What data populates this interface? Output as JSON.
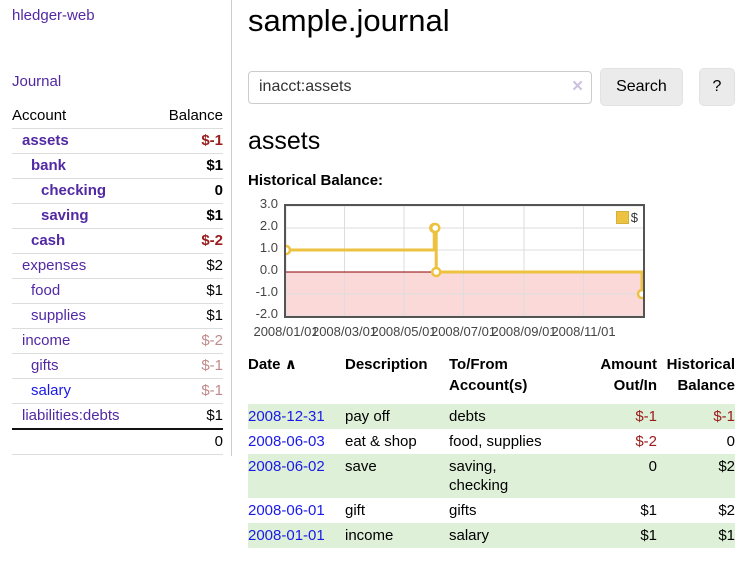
{
  "colors": {
    "link_purple": "#5229a3",
    "link_blue": "#1a1ae8",
    "neg_strong": "#9a1b1b",
    "neg_soft": "#c08a8a",
    "row_green": "#dff0d8",
    "chart_line": "#EDC240",
    "btn_bg": "#ebebeb"
  },
  "header": {
    "title": "sample.journal"
  },
  "search": {
    "value": "inacct:assets",
    "clear_icon": "×",
    "button_label": "Search",
    "help_label": "?"
  },
  "sidebar": {
    "brand": "hledger-web",
    "journal_label": "Journal",
    "columns": {
      "account": "Account",
      "balance": "Balance"
    },
    "accounts": [
      {
        "name": "assets",
        "balance": "$-1"
      },
      {
        "name": "bank",
        "balance": "$1"
      },
      {
        "name": "checking",
        "balance": "0"
      },
      {
        "name": "saving",
        "balance": "$1"
      },
      {
        "name": "cash",
        "balance": "$-2"
      },
      {
        "name": "expenses",
        "balance": "$2"
      },
      {
        "name": "food",
        "balance": "$1"
      },
      {
        "name": "supplies",
        "balance": "$1"
      },
      {
        "name": "income",
        "balance": "$-2"
      },
      {
        "name": "gifts",
        "balance": "$-1"
      },
      {
        "name": "salary",
        "balance": "$-1"
      },
      {
        "name": "liabilities:debts",
        "balance": "$1"
      }
    ],
    "total": "0"
  },
  "main": {
    "account_title": "assets",
    "chart_label": "Historical Balance:"
  },
  "chart_data": {
    "type": "line",
    "step": true,
    "title": "Historical Balance:",
    "legend": "$",
    "legend_position": "top-right",
    "grid": true,
    "x_domain": [
      "2008-01-01",
      "2009-01-01"
    ],
    "ylim": [
      -2,
      3
    ],
    "ytick_labels": [
      "3.0",
      "2.0",
      "1.0",
      "0.0",
      "-1.0",
      "-2.0"
    ],
    "xticks": [
      "2008/01/01",
      "2008/03/01",
      "2008/05/01",
      "2008/07/01",
      "2008/09/01",
      "2008/11/01"
    ],
    "series": [
      {
        "name": "$",
        "color": "#EDC240",
        "points": [
          [
            "2008-01-01",
            1
          ],
          [
            "2008-06-01",
            2
          ],
          [
            "2008-06-02",
            2
          ],
          [
            "2008-06-03",
            0
          ],
          [
            "2008-12-31",
            -1
          ]
        ]
      }
    ],
    "negative_region_color": "#fbd9d9",
    "zero_line_color": "#8b0000"
  },
  "register": {
    "columns": {
      "date": "Date",
      "description": "Description",
      "accounts": "To/From Account(s)",
      "amount": "Amount Out/In",
      "balance": "Historical Balance"
    },
    "sort_icon": "∧",
    "rows": [
      {
        "date": "2008-12-31",
        "description": "pay off",
        "accounts": "debts",
        "amount": "$-1",
        "balance": "$-1"
      },
      {
        "date": "2008-06-03",
        "description": "eat & shop",
        "accounts": "food, supplies",
        "amount": "$-2",
        "balance": "0"
      },
      {
        "date": "2008-06-02",
        "description": "save",
        "accounts": "saving, checking",
        "amount": "0",
        "balance": "$2"
      },
      {
        "date": "2008-06-01",
        "description": "gift",
        "accounts": "gifts",
        "amount": "$1",
        "balance": "$2"
      },
      {
        "date": "2008-01-01",
        "description": "income",
        "accounts": "salary",
        "amount": "$1",
        "balance": "$1"
      }
    ]
  }
}
